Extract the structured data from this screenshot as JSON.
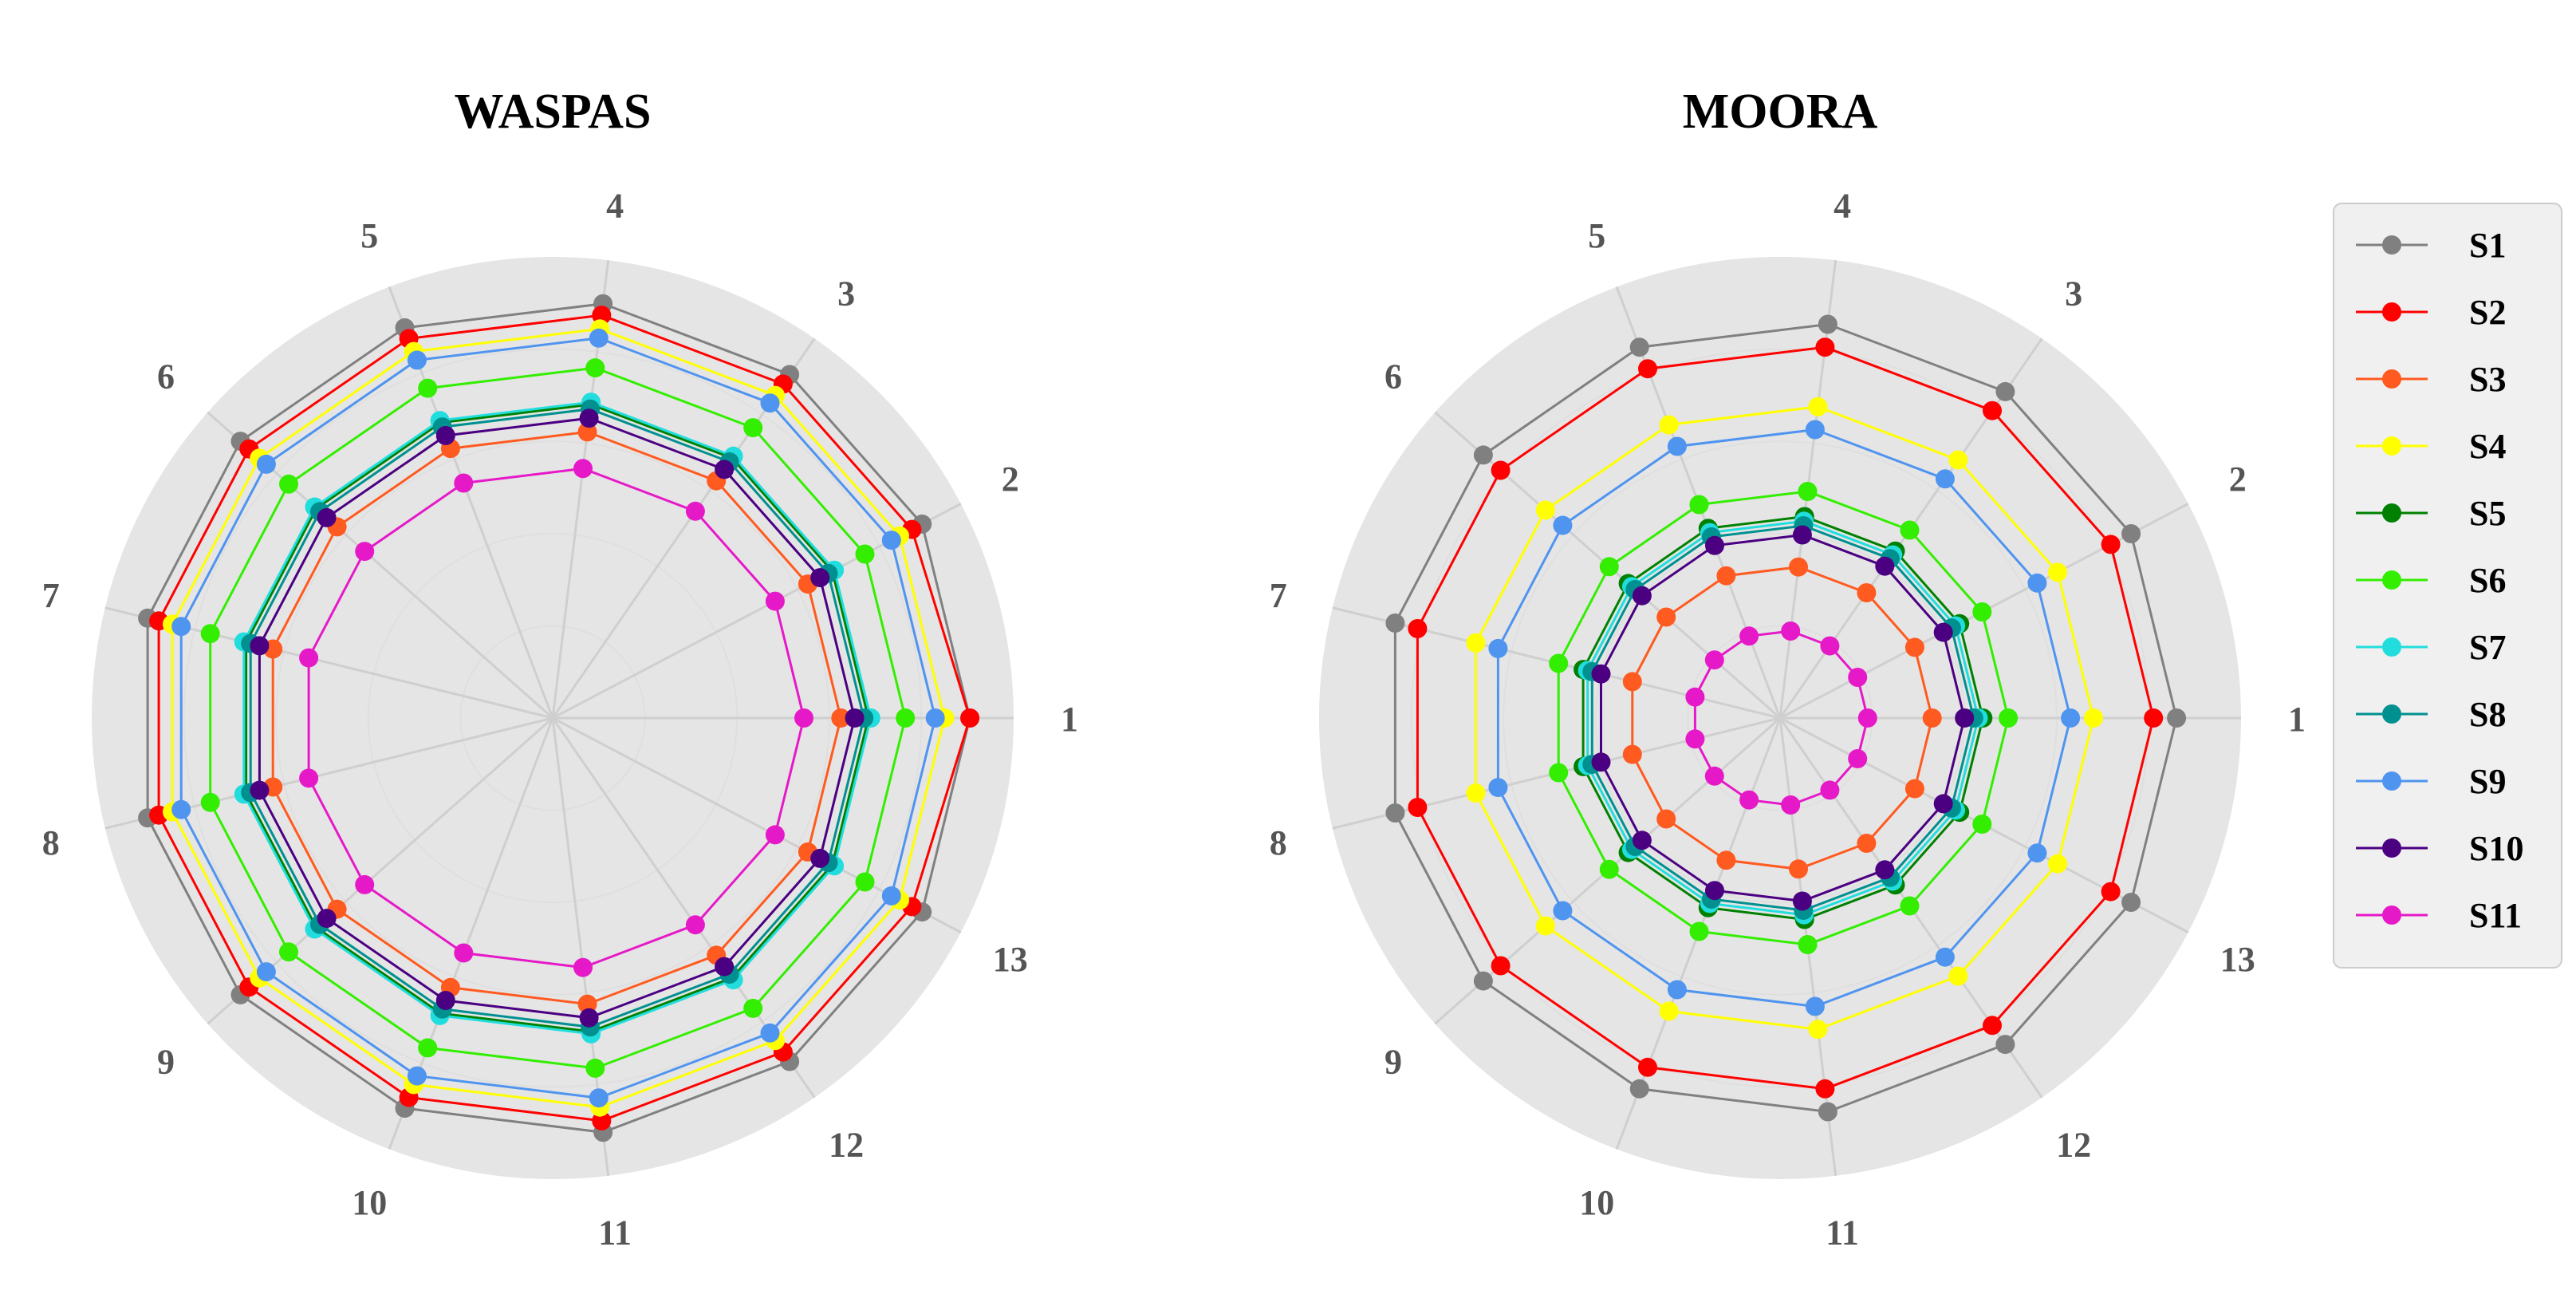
{
  "colors": {
    "panel_background": "#e5e5e5",
    "grid": "#cfcfcf",
    "legend_background": "#f0f0f0",
    "legend_border": "#cccccc"
  },
  "chart_data": [
    {
      "type": "radar",
      "title": "WASPAS",
      "categories": [
        "1",
        "2",
        "3",
        "4",
        "5",
        "6",
        "7",
        "8",
        "9",
        "10",
        "11",
        "12",
        "13"
      ],
      "rlim": [
        0,
        1
      ],
      "grid": true,
      "series": [
        {
          "name": "S1",
          "color": "#808080",
          "values": [
            0.905,
            0.905,
            0.905,
            0.905,
            0.905,
            0.905,
            0.905,
            0.905,
            0.905,
            0.905,
            0.905,
            0.905,
            0.905
          ]
        },
        {
          "name": "S2",
          "color": "#ff0000",
          "values": [
            0.905,
            0.88,
            0.88,
            0.88,
            0.88,
            0.88,
            0.88,
            0.88,
            0.88,
            0.88,
            0.88,
            0.88,
            0.88
          ]
        },
        {
          "name": "S3",
          "color": "#ff5a1f",
          "values": [
            0.625,
            0.625,
            0.625,
            0.625,
            0.625,
            0.625,
            0.625,
            0.625,
            0.625,
            0.625,
            0.625,
            0.625,
            0.625
          ]
        },
        {
          "name": "S4",
          "color": "#ffff00",
          "values": [
            0.85,
            0.85,
            0.85,
            0.85,
            0.85,
            0.85,
            0.85,
            0.85,
            0.85,
            0.85,
            0.85,
            0.85,
            0.85
          ]
        },
        {
          "name": "S5",
          "color": "#008000",
          "values": [
            0.685,
            0.685,
            0.685,
            0.685,
            0.685,
            0.685,
            0.685,
            0.685,
            0.685,
            0.685,
            0.685,
            0.685,
            0.685
          ]
        },
        {
          "name": "S6",
          "color": "#33ee00",
          "values": [
            0.765,
            0.765,
            0.765,
            0.765,
            0.765,
            0.765,
            0.765,
            0.765,
            0.765,
            0.765,
            0.765,
            0.765,
            0.765
          ]
        },
        {
          "name": "S7",
          "color": "#22dddd",
          "values": [
            0.69,
            0.69,
            0.69,
            0.69,
            0.69,
            0.69,
            0.69,
            0.69,
            0.69,
            0.69,
            0.69,
            0.69,
            0.69
          ]
        },
        {
          "name": "S8",
          "color": "#009090",
          "values": [
            0.675,
            0.675,
            0.675,
            0.675,
            0.675,
            0.675,
            0.675,
            0.675,
            0.675,
            0.675,
            0.675,
            0.675,
            0.675
          ]
        },
        {
          "name": "S9",
          "color": "#4f94ef",
          "values": [
            0.83,
            0.83,
            0.83,
            0.83,
            0.83,
            0.83,
            0.83,
            0.83,
            0.83,
            0.83,
            0.83,
            0.83,
            0.83
          ]
        },
        {
          "name": "S10",
          "color": "#4b0082",
          "values": [
            0.655,
            0.655,
            0.655,
            0.655,
            0.655,
            0.655,
            0.655,
            0.655,
            0.655,
            0.655,
            0.655,
            0.655,
            0.655
          ]
        },
        {
          "name": "S11",
          "color": "#e619c8",
          "values": [
            0.545,
            0.545,
            0.545,
            0.545,
            0.545,
            0.545,
            0.545,
            0.545,
            0.545,
            0.545,
            0.545,
            0.545,
            0.545
          ]
        }
      ]
    },
    {
      "type": "radar",
      "title": "MOORA",
      "categories": [
        "1",
        "2",
        "3",
        "4",
        "5",
        "6",
        "7",
        "8",
        "9",
        "10",
        "11",
        "12",
        "13"
      ],
      "rlim": [
        0,
        1
      ],
      "grid": true,
      "series": [
        {
          "name": "S1",
          "color": "#808080",
          "values": [
            0.86,
            0.86,
            0.86,
            0.86,
            0.86,
            0.86,
            0.86,
            0.86,
            0.86,
            0.86,
            0.86,
            0.86,
            0.86
          ]
        },
        {
          "name": "S2",
          "color": "#ff0000",
          "values": [
            0.81,
            0.81,
            0.81,
            0.81,
            0.81,
            0.81,
            0.81,
            0.81,
            0.81,
            0.81,
            0.81,
            0.81,
            0.81
          ]
        },
        {
          "name": "S3",
          "color": "#ff5a1f",
          "values": [
            0.33,
            0.33,
            0.33,
            0.33,
            0.33,
            0.33,
            0.33,
            0.33,
            0.33,
            0.33,
            0.33,
            0.33,
            0.33
          ]
        },
        {
          "name": "S4",
          "color": "#ffff00",
          "values": [
            0.68,
            0.68,
            0.68,
            0.68,
            0.68,
            0.68,
            0.68,
            0.68,
            0.68,
            0.68,
            0.68,
            0.68,
            0.68
          ]
        },
        {
          "name": "S5",
          "color": "#008000",
          "values": [
            0.44,
            0.44,
            0.44,
            0.44,
            0.44,
            0.44,
            0.44,
            0.44,
            0.44,
            0.44,
            0.44,
            0.44,
            0.44
          ]
        },
        {
          "name": "S6",
          "color": "#33ee00",
          "values": [
            0.495,
            0.495,
            0.495,
            0.495,
            0.495,
            0.495,
            0.495,
            0.495,
            0.495,
            0.495,
            0.495,
            0.495,
            0.495
          ]
        },
        {
          "name": "S7",
          "color": "#22dddd",
          "values": [
            0.43,
            0.43,
            0.43,
            0.43,
            0.43,
            0.43,
            0.43,
            0.43,
            0.43,
            0.43,
            0.43,
            0.43,
            0.43
          ]
        },
        {
          "name": "S8",
          "color": "#009090",
          "values": [
            0.42,
            0.42,
            0.42,
            0.42,
            0.42,
            0.42,
            0.42,
            0.42,
            0.42,
            0.42,
            0.42,
            0.42,
            0.42
          ]
        },
        {
          "name": "S9",
          "color": "#4f94ef",
          "values": [
            0.63,
            0.63,
            0.63,
            0.63,
            0.63,
            0.63,
            0.63,
            0.63,
            0.63,
            0.63,
            0.63,
            0.63,
            0.63
          ]
        },
        {
          "name": "S10",
          "color": "#4b0082",
          "values": [
            0.4,
            0.4,
            0.4,
            0.4,
            0.4,
            0.4,
            0.4,
            0.4,
            0.4,
            0.4,
            0.4,
            0.4,
            0.4
          ]
        },
        {
          "name": "S11",
          "color": "#e619c8",
          "values": [
            0.19,
            0.19,
            0.19,
            0.19,
            0.19,
            0.19,
            0.19,
            0.19,
            0.19,
            0.19,
            0.19,
            0.19,
            0.19
          ]
        }
      ]
    }
  ],
  "legend": {
    "placement": "right",
    "items": [
      "S1",
      "S2",
      "S3",
      "S4",
      "S5",
      "S6",
      "S7",
      "S8",
      "S9",
      "S10",
      "S11"
    ]
  }
}
